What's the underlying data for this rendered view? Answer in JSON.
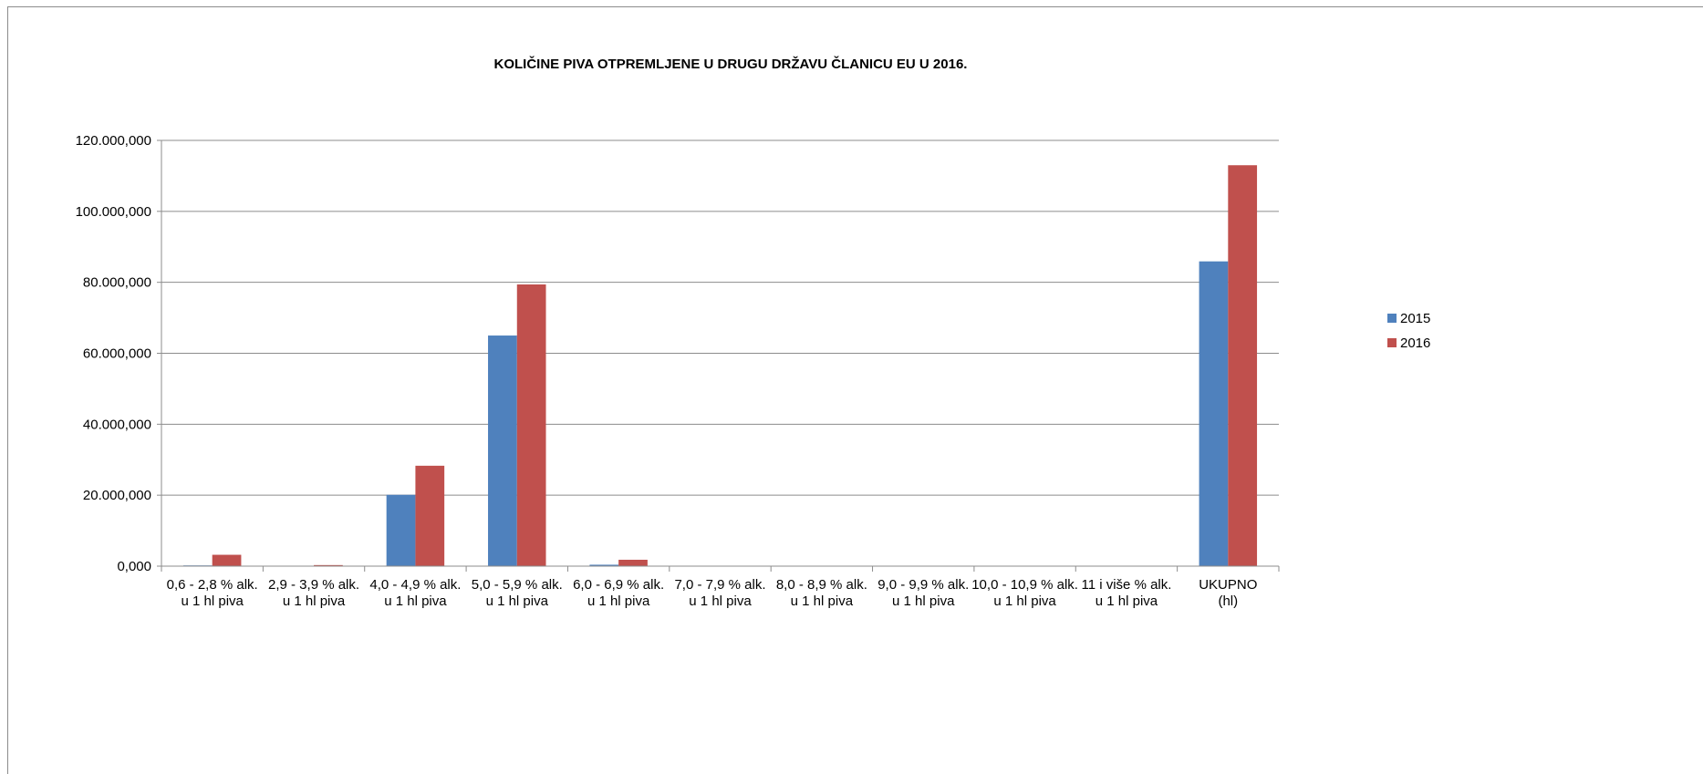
{
  "chart_data": {
    "type": "bar",
    "title": "KOLIČINE PIVA OTPREMLJENE U DRUGU DRŽAVU ČLANICU EU U 2016.",
    "xlabel": "",
    "ylabel": "",
    "ylim": [
      0,
      120000000
    ],
    "yticks": [
      {
        "value": 0,
        "label": "0,000"
      },
      {
        "value": 20000000,
        "label": "20.000,000"
      },
      {
        "value": 40000000,
        "label": "40.000,000"
      },
      {
        "value": 60000000,
        "label": "60.000,000"
      },
      {
        "value": 80000000,
        "label": "80.000,000"
      },
      {
        "value": 100000000,
        "label": "100.000,000"
      },
      {
        "value": 120000000,
        "label": "120.000,000"
      }
    ],
    "grid": true,
    "legend_position": "right",
    "categories": [
      [
        "0,6 -  2,8 % alk.",
        "u 1 hl piva"
      ],
      [
        "2,9 -  3,9 % alk.",
        "u 1 hl piva"
      ],
      [
        "4,0 -  4,9 % alk.",
        "u 1 hl piva"
      ],
      [
        "5,0 -  5,9 % alk.",
        "u 1 hl piva"
      ],
      [
        "6,0 -  6,9 % alk.",
        "u 1 hl piva"
      ],
      [
        "7,0 -  7,9 % alk.",
        "u 1 hl piva"
      ],
      [
        "8,0 -  8,9 % alk.",
        "u 1 hl piva"
      ],
      [
        "9,0 -  9,9 % alk.",
        "u 1 hl piva"
      ],
      [
        "10,0 - 10,9 % alk.",
        "u 1 hl piva"
      ],
      [
        "11 i više % alk.",
        "u 1 hl piva"
      ],
      [
        "UKUPNO",
        "(hl)"
      ]
    ],
    "series": [
      {
        "name": "2015",
        "color": "#4f81bd",
        "values": [
          200000,
          50000,
          20100000,
          65000000,
          400000,
          0,
          0,
          0,
          0,
          0,
          85900000
        ]
      },
      {
        "name": "2016",
        "color": "#c0504d",
        "values": [
          3200000,
          300000,
          28300000,
          79400000,
          1800000,
          0,
          0,
          0,
          0,
          0,
          113000000
        ]
      }
    ]
  }
}
